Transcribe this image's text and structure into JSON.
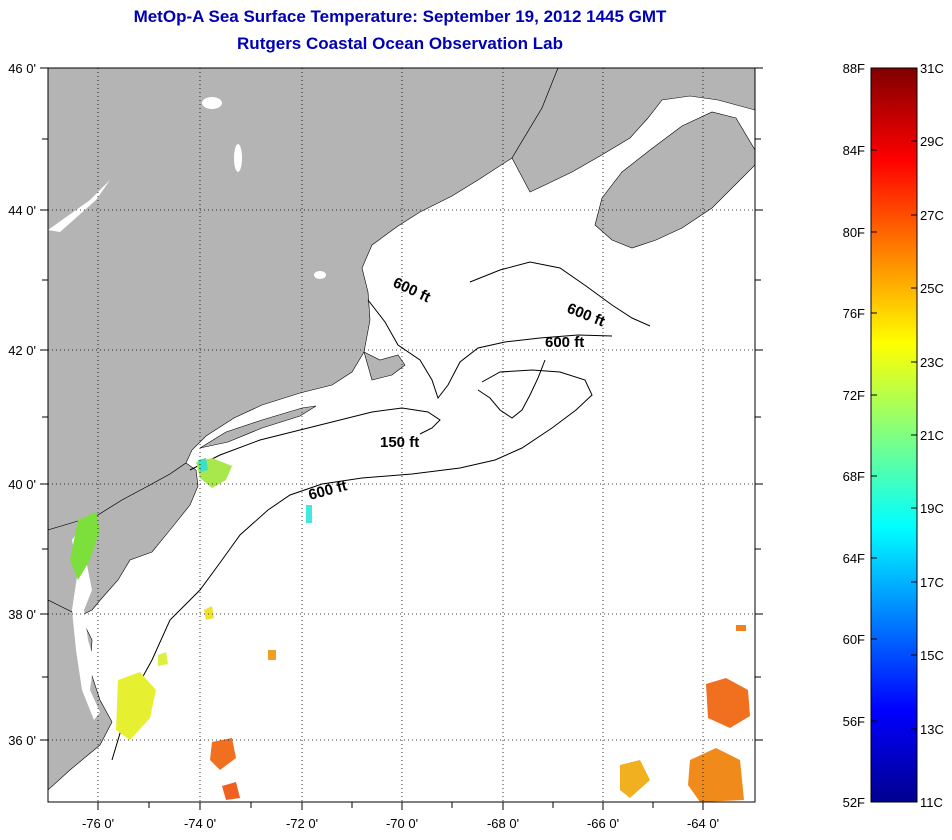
{
  "header": {
    "title_line1": "MetOp-A Sea Surface Temperature:  September 19, 2012 1445 GMT",
    "title_line2": "Rutgers Coastal Ocean Observation Lab"
  },
  "map": {
    "lat_labels": [
      "46 0'",
      "44 0'",
      "42 0'",
      "40 0'",
      "38 0'",
      "36 0'"
    ],
    "lon_labels": [
      "-76 0'",
      "-74 0'",
      "-72 0'",
      "-70 0'",
      "-68 0'",
      "-66 0'",
      "-64 0'"
    ],
    "contour_labels": [
      {
        "text": "600 ft",
        "rot": 25
      },
      {
        "text": "600 ft",
        "rot": 22
      },
      {
        "text": "600 ft",
        "rot": 0
      },
      {
        "text": "150 ft",
        "rot": 0
      },
      {
        "text": "600 ft",
        "rot": -15
      }
    ],
    "colors": {
      "land": "#b4b4b4",
      "ocean": "#ffffff",
      "title": "#0000b4"
    }
  },
  "colorbar": {
    "f_labels": [
      "88F",
      "84F",
      "80F",
      "76F",
      "72F",
      "68F",
      "64F",
      "60F",
      "56F",
      "52F"
    ],
    "c_labels": [
      "31C",
      "29C",
      "27C",
      "25C",
      "23C",
      "21C",
      "19C",
      "17C",
      "15C",
      "13C",
      "11C"
    ],
    "colors_bottom_to_top": [
      "#00008f",
      "#0000ff",
      "#0080ff",
      "#00ffff",
      "#80ff80",
      "#ffff00",
      "#ff8000",
      "#ff0000",
      "#800000"
    ]
  }
}
